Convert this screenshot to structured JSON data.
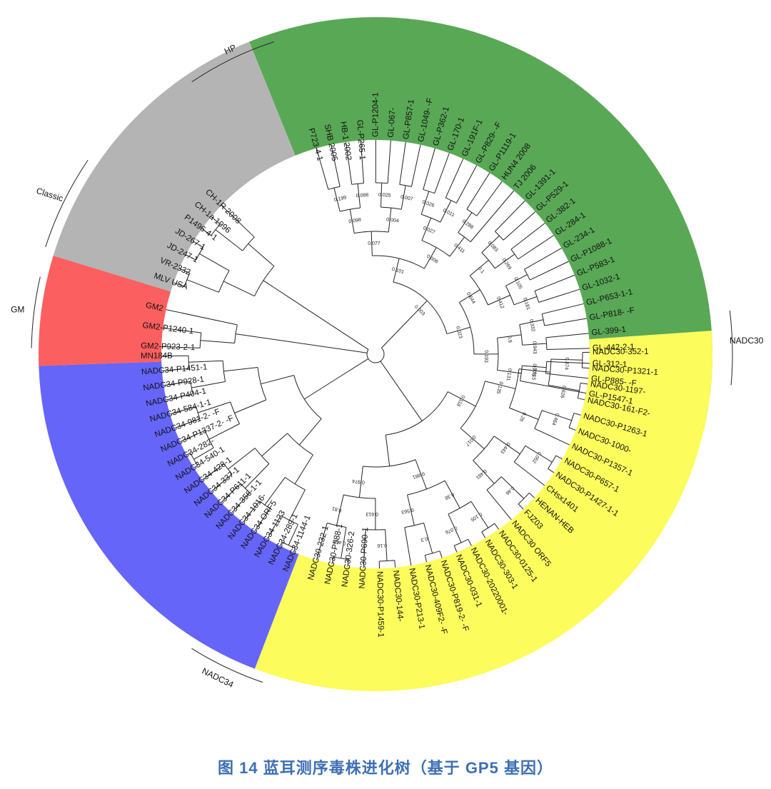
{
  "caption": "图 14  蓝耳测序毒株进化树（基于 GP5 基因）",
  "clades": [
    {
      "name": "HP",
      "color": "#59a856",
      "leaves": [
        "P723-4-1",
        "SHB 2005",
        "HB-1 2002",
        "GL-P265-1",
        "GL-P1204-1",
        "GL-067-",
        "GL-P857-1",
        "GL-1049- -F",
        "GL-P362-1",
        "GL-170-1",
        "GL-191F-1",
        "GL-P829- -F",
        "GL-P1119-1",
        "HUN4 2008",
        "TJ 2006",
        "GL-1391-1",
        "GL-P529-1",
        "GL-382-1",
        "GL-284-1",
        "GL-234-1",
        "GL-P1088-1",
        "GL-P583-1",
        "GL-1032-1",
        "GL-P653-1-1",
        "GL-P818- -F",
        "GL-399-1",
        "GL-442-2-1",
        "GL-312-1",
        "GL-P885- -F",
        "GL-P1547-1"
      ]
    },
    {
      "name": "NADC30",
      "color": "#fcfc5c",
      "leaves": [
        "NADC30-352-1",
        "NADC30-P1321-1",
        "NADC30-1197-",
        "NADC30-161-F2-",
        "NADC30-P1263-1",
        "NADC30-1000-",
        "NADC30-P1357-1",
        "NADC30-P657-1",
        "NADC30-P1427-1-1",
        "CHsx1401",
        "HENAN-HEB",
        "FJZ03",
        "NADC30 ORF5",
        "NADC30-0125-1",
        "NADC30-303-1",
        "NADC30-20220001-",
        "NADC30-031-1",
        "NADC30-P819-2- -F",
        "NADC30-409F2- -F",
        "NADC30-P213-1",
        "NADC30-144-",
        "NADC30-P1459-1",
        "NADC30-P690-1",
        "NADC30-326-2",
        "NADC30-P588-1",
        "NADC30-232-1"
      ]
    },
    {
      "name": "NADC34",
      "color": "#6565fa",
      "leaves": [
        "NADC34-1144-1",
        "NADC34-289-1",
        "NADC34-1123",
        "NADC34 ORF5",
        "NADC34-1016-",
        "NADC34-356-1-1",
        "NADC34-P611-1",
        "NADC34-337-1",
        "NADC34-428-1",
        "NADC34-540-1",
        "NADC34-282-",
        "NADC34-P1337-2- -F",
        "NADC34-981-2- -F",
        "NADC34-584-1-1",
        "NADC34-P404-1",
        "NADC34-P928-1",
        "NADC34-P1451-1",
        "MN184B"
      ]
    },
    {
      "name": "GM",
      "color": "#fc5f5f",
      "leaves": [
        "GM2-P923-2-1",
        "GM2-P1240-1",
        "GM2"
      ]
    },
    {
      "name": "Classic",
      "color": "#b4b4b4",
      "leaves": [
        "MLV USA",
        "VR-2332",
        "JD-247-1",
        "JD-267-1",
        "P1496-4-1",
        "CH-1a 1996",
        "CH-1R 2008"
      ]
    }
  ],
  "bootstrap_values": [
    "0.199",
    "0.088",
    "0.098",
    "0.025",
    "0.007",
    "0.004",
    "0.077",
    "0.026",
    "0.011",
    "0.027",
    "0.288",
    "0.411",
    "0.006",
    "0.101",
    "0.083",
    "0.269",
    "0.1",
    "0.105",
    "0.181",
    "0.412",
    "0.644",
    "0.332",
    "0.943",
    "0.9",
    "0.776",
    "0.131",
    "0.193",
    "0.023",
    "0.003",
    "0.874",
    "0.626",
    "0.815",
    "0.464",
    "0.26",
    "0.135",
    "0.052",
    "0.443",
    "0.46",
    "0.481",
    "0.017",
    "0.118",
    "0.105",
    "0.076",
    "0.38",
    "0.3",
    "0.563",
    "0.881",
    "0.16",
    "0.613",
    "0.461",
    "0.81",
    "0.974"
  ]
}
